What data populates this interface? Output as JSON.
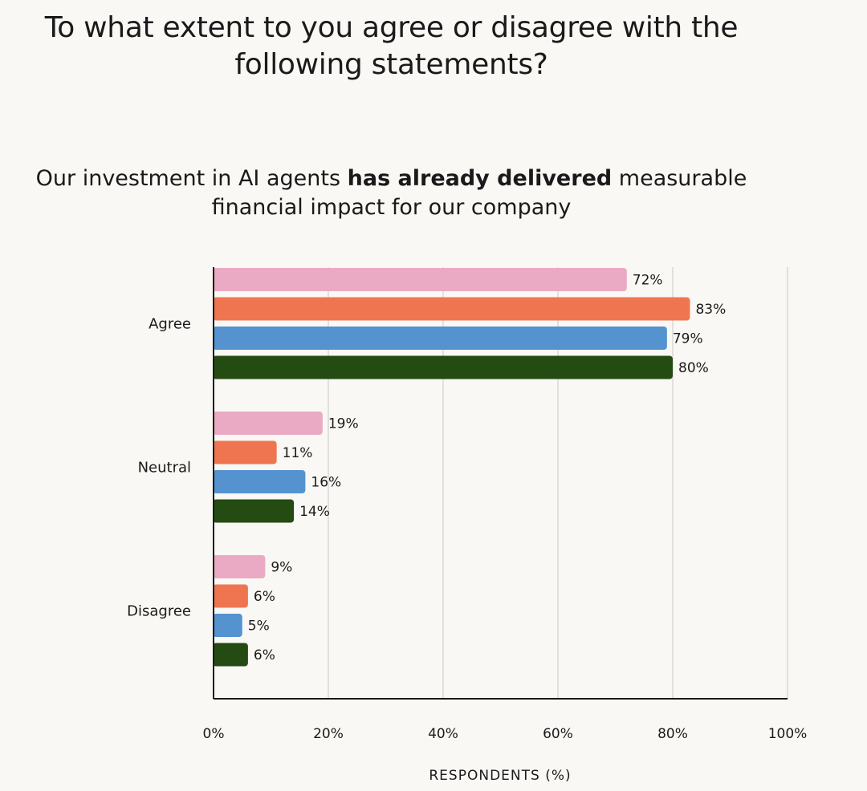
{
  "question": "To what extent to you agree or disagree with the following statements?",
  "statement": {
    "before": "Our investment in AI agents ",
    "bold": "has already delivered",
    "after": " measurable financial  impact for our company"
  },
  "colors": {
    "series": [
      "#eaaac3",
      "#ef7550",
      "#5492d0",
      "#244b12"
    ],
    "grid": "#d8d8d8",
    "axis": "#1a1a1a",
    "background": "#f9f8f5"
  },
  "chart_data": {
    "type": "bar",
    "orientation": "horizontal",
    "title": "",
    "xlabel": "RESPONDENTS (%)",
    "ylabel": "",
    "xlim": [
      0,
      100
    ],
    "x_ticks": [
      0,
      20,
      40,
      60,
      80,
      100
    ],
    "x_tick_labels": [
      "0%",
      "20%",
      "40%",
      "60%",
      "80%",
      "100%"
    ],
    "grid": "vertical",
    "legend": "none",
    "categories": [
      "Agree",
      "Neutral",
      "Disagree"
    ],
    "series": [
      {
        "values": [
          72,
          19,
          9
        ],
        "labels": [
          "72%",
          "19%",
          "9%"
        ]
      },
      {
        "values": [
          83,
          11,
          6
        ],
        "labels": [
          "83%",
          "11%",
          "6%"
        ]
      },
      {
        "values": [
          79,
          16,
          5
        ],
        "labels": [
          "79%",
          "16%",
          "5%"
        ]
      },
      {
        "values": [
          80,
          14,
          6
        ],
        "labels": [
          "80%",
          "14%",
          "6%"
        ]
      }
    ]
  }
}
